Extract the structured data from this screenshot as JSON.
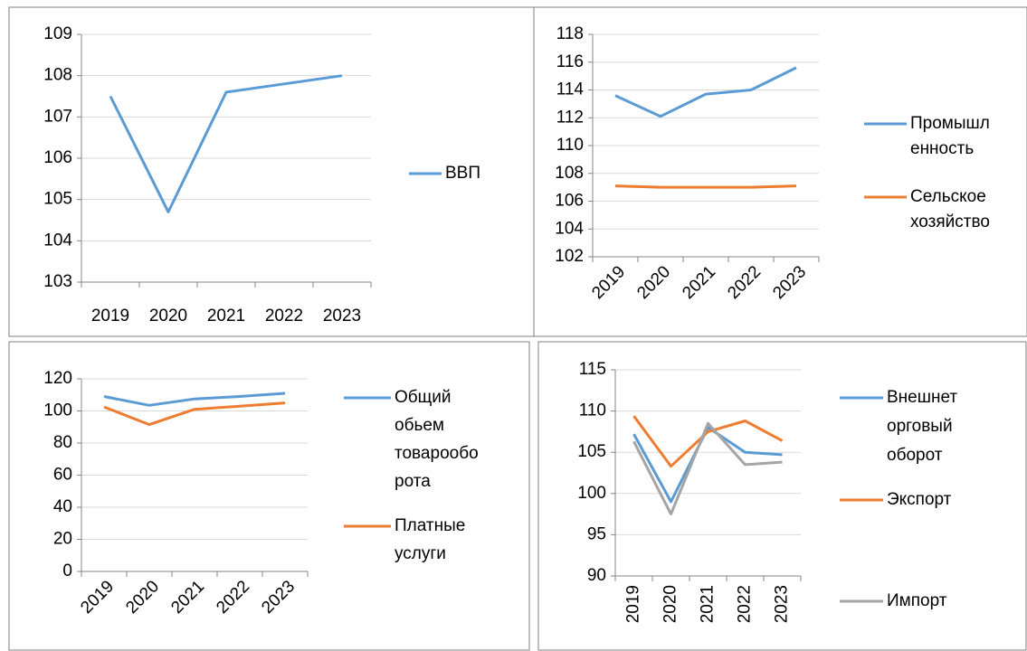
{
  "chart_data": [
    {
      "type": "line",
      "categories": [
        "2019",
        "2020",
        "2021",
        "2022",
        "2023"
      ],
      "series": [
        {
          "name": "ВВП",
          "color": "#5b9bd5",
          "values": [
            107.5,
            104.7,
            107.6,
            107.8,
            108.0
          ]
        }
      ],
      "ylim": [
        103,
        109
      ],
      "yticks": [
        103,
        104,
        105,
        106,
        107,
        108,
        109
      ],
      "grid": true,
      "legend": "right"
    },
    {
      "type": "line",
      "categories": [
        "2019",
        "2020",
        "2021",
        "2022",
        "2023"
      ],
      "series": [
        {
          "name": "Промышленность",
          "color": "#5b9bd5",
          "values": [
            113.6,
            112.1,
            113.7,
            114.0,
            115.6
          ]
        },
        {
          "name": "Сельское хозяйство",
          "color": "#ed7d31",
          "values": [
            107.1,
            107.0,
            107.0,
            107.0,
            107.1
          ]
        }
      ],
      "ylim": [
        102,
        118
      ],
      "yticks": [
        102,
        104,
        106,
        108,
        110,
        112,
        114,
        116,
        118
      ],
      "grid": true,
      "legend": "right"
    },
    {
      "type": "line",
      "categories": [
        "2019",
        "2020",
        "2021",
        "2022",
        "2023"
      ],
      "series": [
        {
          "name": "Общий обьем товарооборота",
          "color": "#5b9bd5",
          "values": [
            109,
            103.5,
            107.5,
            109,
            111
          ]
        },
        {
          "name": "Платные услуги",
          "color": "#ed7d31",
          "values": [
            102.5,
            91.5,
            101,
            103,
            105
          ]
        }
      ],
      "ylim": [
        0,
        120
      ],
      "yticks": [
        0,
        20,
        40,
        60,
        80,
        100,
        120
      ],
      "grid": true,
      "legend": "right"
    },
    {
      "type": "line",
      "categories": [
        "2019",
        "2020",
        "2021",
        "2022",
        "2023"
      ],
      "series": [
        {
          "name": "Внешнеторговый оборот",
          "color": "#5b9bd5",
          "values": [
            107.2,
            99,
            108,
            105,
            104.7
          ]
        },
        {
          "name": "Экспорт",
          "color": "#ed7d31",
          "values": [
            109.4,
            103.3,
            107.5,
            108.8,
            106.4
          ]
        },
        {
          "name": "Импорт",
          "color": "#a5a5a5",
          "values": [
            106.3,
            97.5,
            108.5,
            103.5,
            103.8
          ]
        }
      ],
      "ylim": [
        90,
        115
      ],
      "yticks": [
        90,
        95,
        100,
        105,
        110,
        115
      ],
      "grid": true,
      "legend": "right"
    }
  ]
}
